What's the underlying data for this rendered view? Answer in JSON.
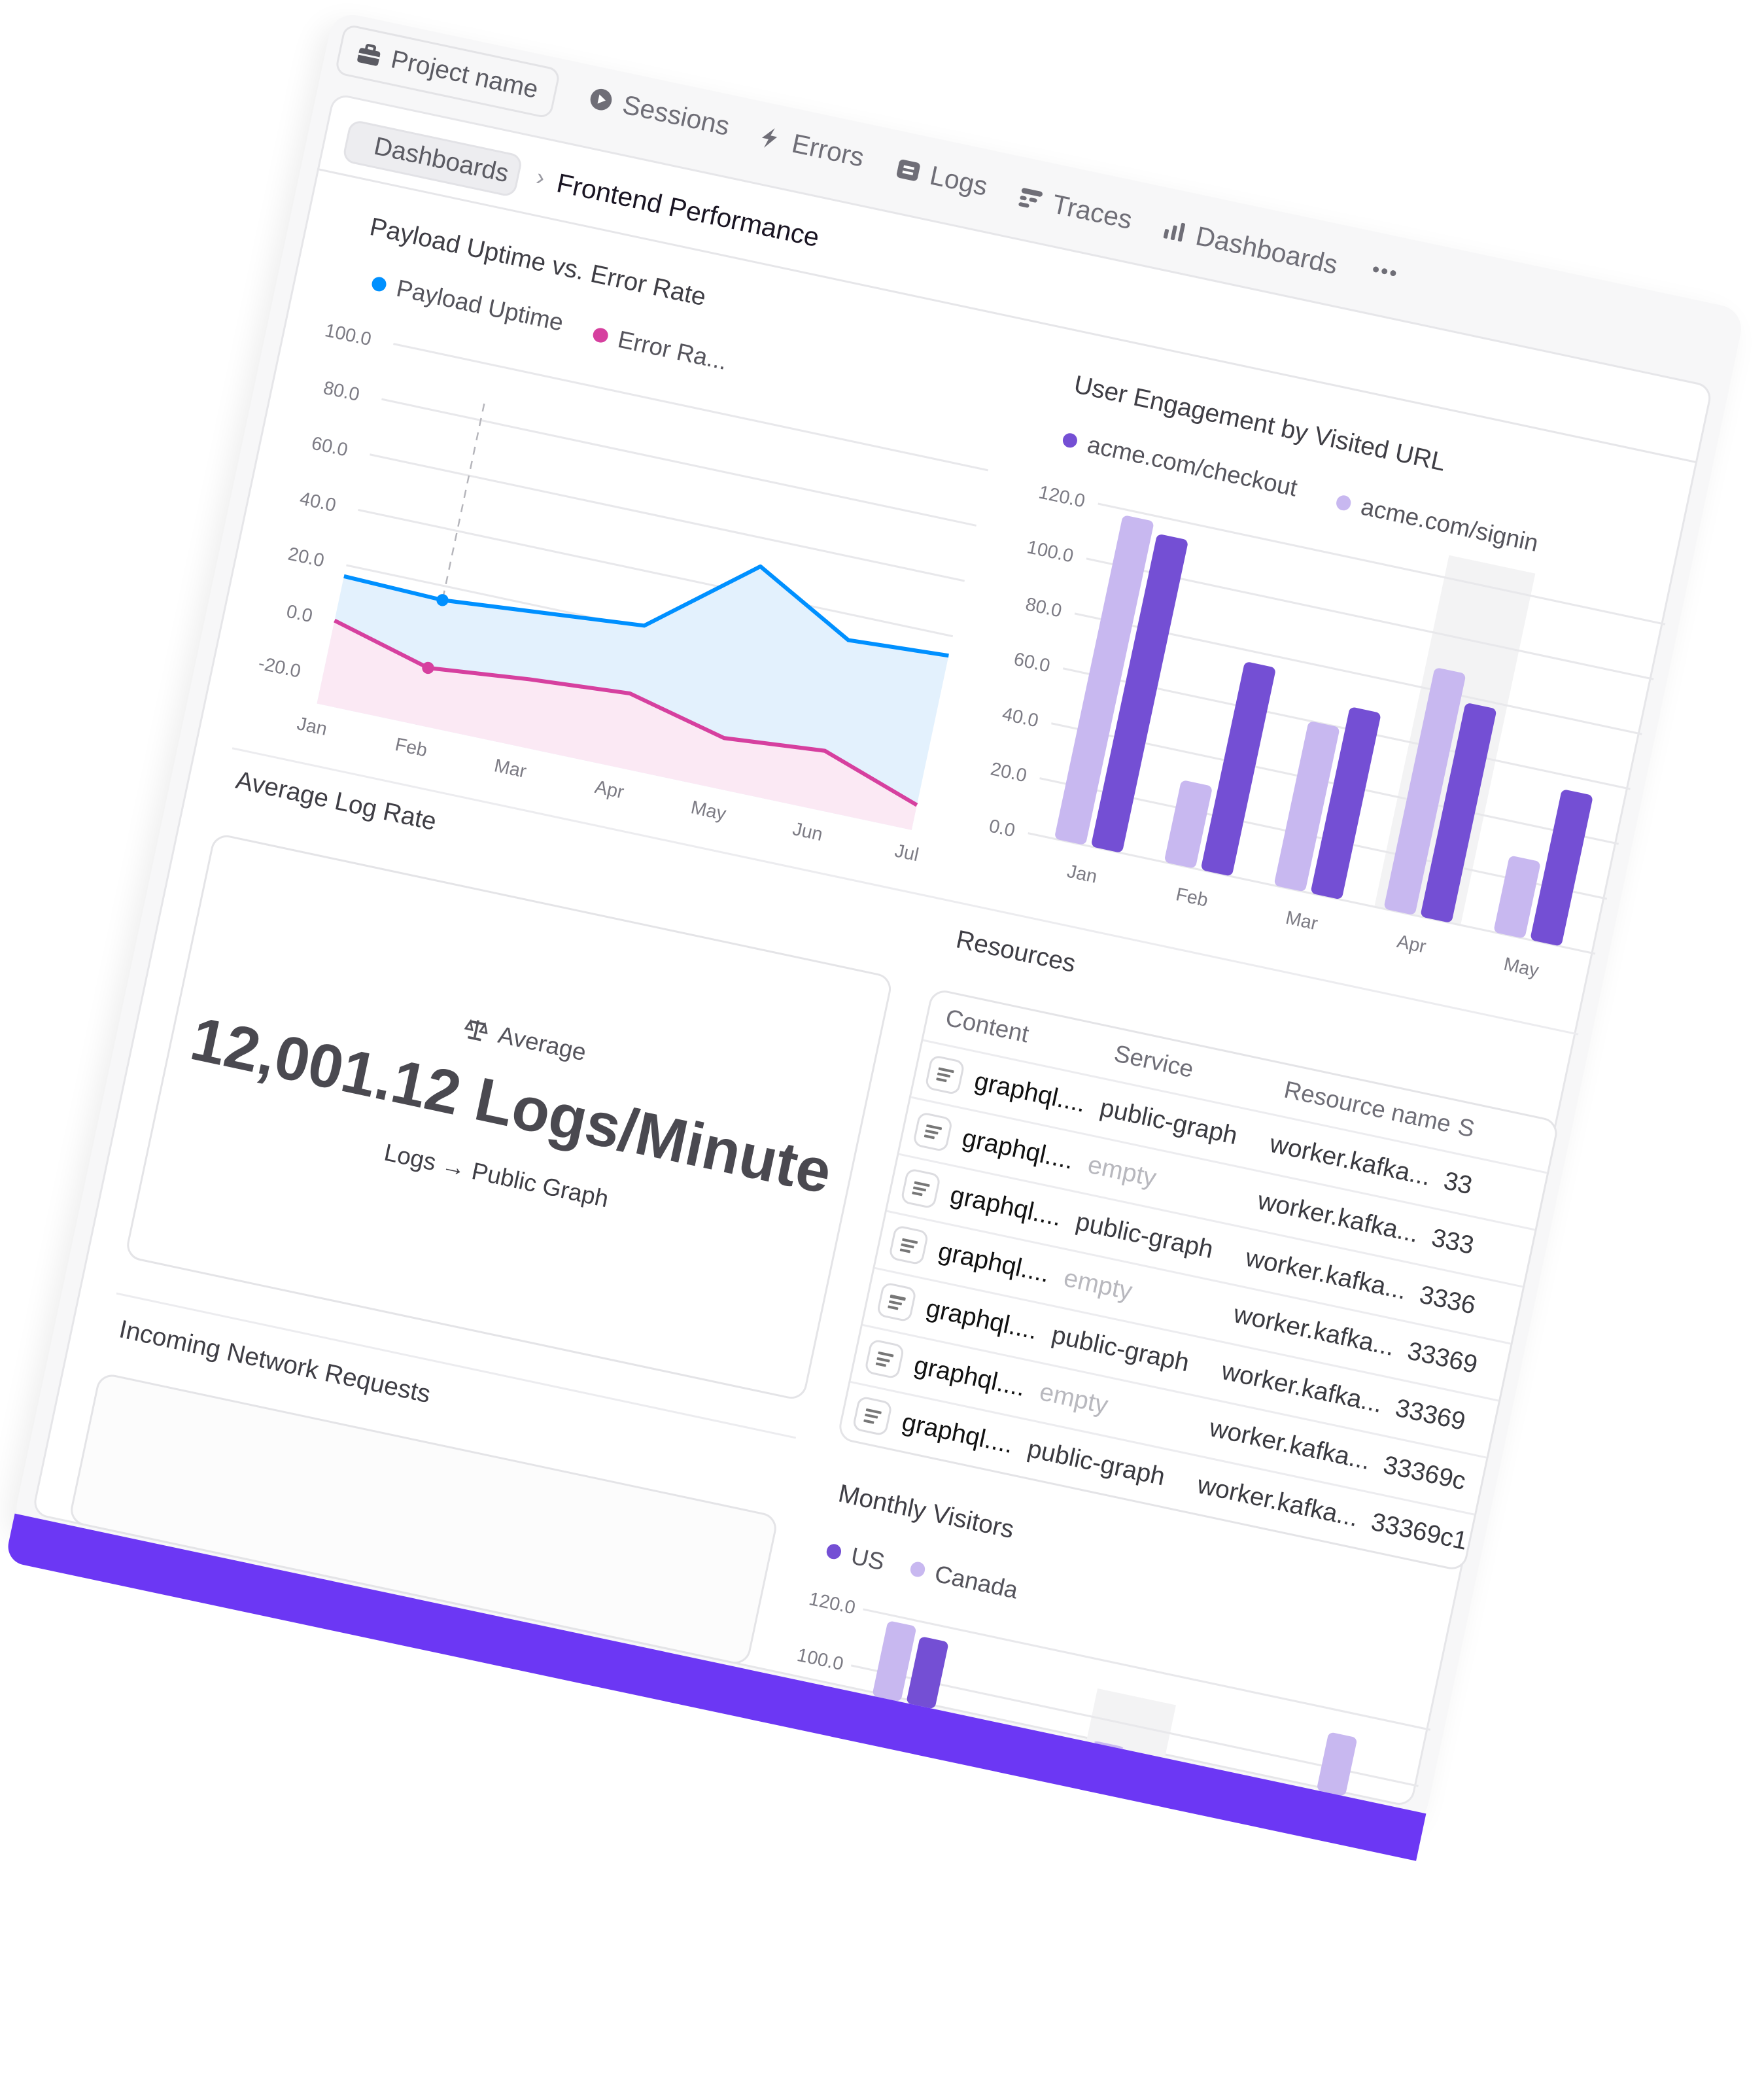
{
  "topnav": {
    "project": {
      "label": "Project name",
      "icon": "briefcase-icon"
    },
    "items": [
      {
        "label": "Sessions",
        "icon": "play-circle-icon"
      },
      {
        "label": "Errors",
        "icon": "lightning-icon"
      },
      {
        "label": "Logs",
        "icon": "logs-icon"
      },
      {
        "label": "Traces",
        "icon": "traces-icon"
      },
      {
        "label": "Dashboards",
        "icon": "bar-chart-icon"
      }
    ],
    "more": "•••"
  },
  "breadcrumb": {
    "parent": "Dashboards",
    "separator": "›",
    "current": "Frontend Performance"
  },
  "colors": {
    "payload": "#0090ff",
    "error": "#d6409f",
    "dark_purple": "#744fd4",
    "light_purple": "#c8b8f0",
    "brand_bar": "#6c37f4"
  },
  "chart_data": [
    {
      "type": "area",
      "title": "Payload Uptime vs. Error Rate",
      "legend": [
        "Payload Uptime",
        "Error Ra..."
      ],
      "categories": [
        "Jan",
        "Feb",
        "Mar",
        "Apr",
        "May",
        "Jun",
        "Jul"
      ],
      "yticks": [
        "100.0",
        "80.0",
        "60.0",
        "40.0",
        "20.0",
        "0.0",
        "-20.0"
      ],
      "ylim": [
        -20,
        100
      ],
      "grid": true,
      "series": [
        {
          "name": "Payload Uptime",
          "color": "#0090ff",
          "values": [
            16,
            15,
            18,
            21,
            50,
            31,
            33
          ]
        },
        {
          "name": "Error Ra...",
          "color": "#d6409f",
          "values": [
            0,
            -9.5,
            -6,
            -3.5,
            -12,
            -9,
            -21
          ]
        }
      ],
      "hover_category": "Feb"
    },
    {
      "type": "bar",
      "title": "User Engagement by Visited URL",
      "legend": [
        "acme.com/checkout",
        "acme.com/signin"
      ],
      "categories": [
        "Jan",
        "Feb",
        "Mar",
        "Apr",
        "May"
      ],
      "yticks": [
        "120.0",
        "100.0",
        "80.0",
        "60.0",
        "40.0",
        "20.0",
        "0.0"
      ],
      "ylim": [
        0,
        120
      ],
      "grid": true,
      "series": [
        {
          "name": "acme.com/signin",
          "color": "#c8b8f0",
          "values": [
            118,
            30,
            60,
            88,
            28
          ]
        },
        {
          "name": "acme.com/checkout",
          "color": "#744fd4",
          "values": [
            114,
            76,
            68,
            78,
            55
          ]
        }
      ],
      "hover_category": "Apr"
    },
    {
      "type": "bar",
      "title": "Monthly Visitors",
      "legend": [
        "US",
        "Canada"
      ],
      "yticks": [
        "120.0",
        "100.0"
      ],
      "ylim": [
        0,
        120
      ],
      "groups": [
        {
          "Canada": 118,
          "US": 115
        },
        {
          "Canada": 92
        },
        {
          "Canada": 112
        }
      ],
      "hover_group": 1
    }
  ],
  "log_rate": {
    "title": "Average Log Rate",
    "label": "Average",
    "value": "12,001.12 Logs/Minute",
    "source": "Logs → Public Graph"
  },
  "resources": {
    "title": "Resources",
    "columns": [
      "Content",
      "Service",
      "Resource name",
      "S"
    ],
    "rows": [
      {
        "content": "graphql....",
        "service": "public-graph",
        "resource": "worker.kafka...",
        "span": "33"
      },
      {
        "content": "graphql....",
        "service": "empty",
        "resource": "worker.kafka...",
        "span": "333"
      },
      {
        "content": "graphql....",
        "service": "public-graph",
        "resource": "worker.kafka...",
        "span": "3336"
      },
      {
        "content": "graphql....",
        "service": "empty",
        "resource": "worker.kafka...",
        "span": "33369"
      },
      {
        "content": "graphql....",
        "service": "public-graph",
        "resource": "worker.kafka...",
        "span": "33369"
      },
      {
        "content": "graphql....",
        "service": "empty",
        "resource": "worker.kafka...",
        "span": "33369c"
      },
      {
        "content": "graphql....",
        "service": "public-graph",
        "resource": "worker.kafka...",
        "span": "33369c1"
      }
    ]
  },
  "network": {
    "title": "Incoming Network Requests"
  }
}
